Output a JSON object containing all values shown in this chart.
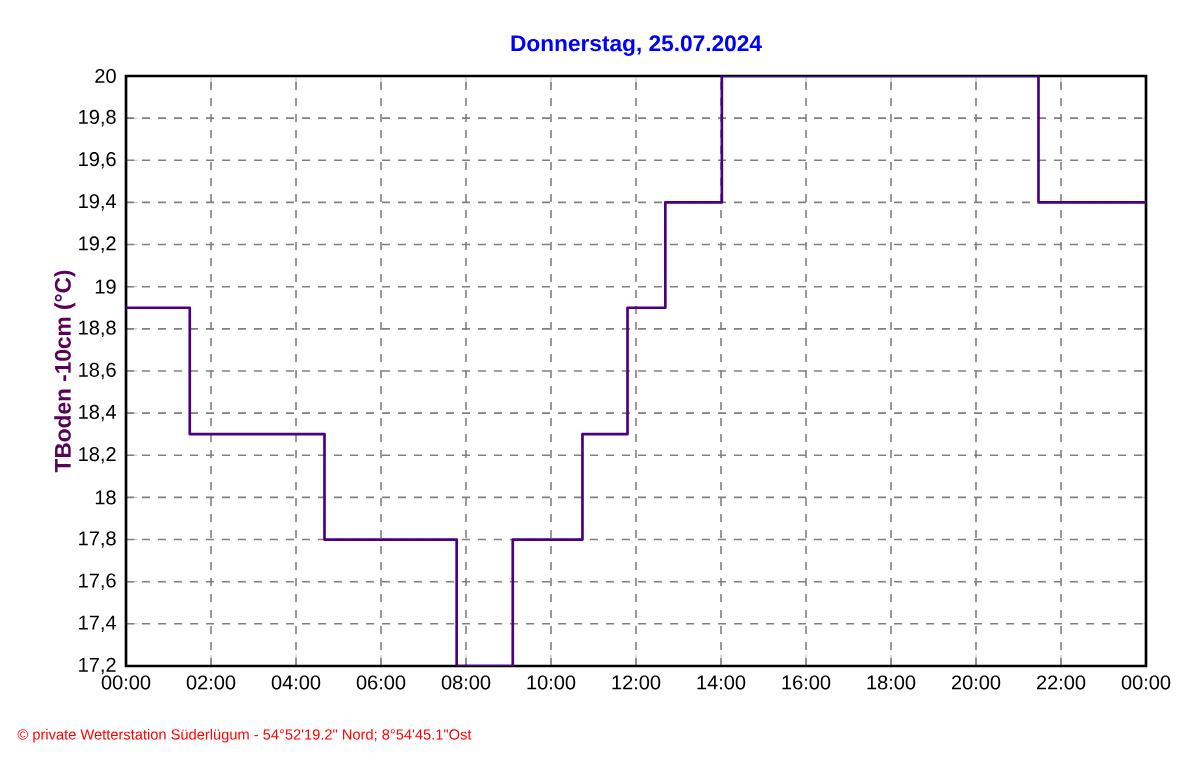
{
  "chart_data": {
    "type": "step",
    "title": "Donnerstag, 25.07.2024",
    "ylabel": "TBoden -10cm (°C)",
    "x": [
      0,
      1.5,
      4.67,
      7.78,
      9.1,
      10.74,
      11.8,
      12.69,
      14.02,
      21.47,
      24
    ],
    "series": [
      {
        "color": "#4b0082",
        "values": [
          18.9,
          18.3,
          17.8,
          17.2,
          17.8,
          18.3,
          18.9,
          19.4,
          20,
          19.4,
          19.4
        ]
      }
    ],
    "xlim": [
      0,
      24
    ],
    "xticks": [
      {
        "value": 0,
        "label": "00:00"
      },
      {
        "value": 2,
        "label": "02:00"
      },
      {
        "value": 4,
        "label": "04:00"
      },
      {
        "value": 6,
        "label": "06:00"
      },
      {
        "value": 8,
        "label": "08:00"
      },
      {
        "value": 10,
        "label": "10:00"
      },
      {
        "value": 12,
        "label": "12:00"
      },
      {
        "value": 14,
        "label": "14:00"
      },
      {
        "value": 16,
        "label": "16:00"
      },
      {
        "value": 18,
        "label": "18:00"
      },
      {
        "value": 20,
        "label": "20:00"
      },
      {
        "value": 22,
        "label": "22:00"
      },
      {
        "value": 24,
        "label": "00:00"
      }
    ],
    "ylim": [
      17.2,
      20
    ],
    "yticks": [
      {
        "value": 17.2,
        "label": "17,2"
      },
      {
        "value": 17.4,
        "label": "17,4"
      },
      {
        "value": 17.6,
        "label": "17,6"
      },
      {
        "value": 17.8,
        "label": "17,8"
      },
      {
        "value": 18,
        "label": "18"
      },
      {
        "value": 18.2,
        "label": "18,2"
      },
      {
        "value": 18.4,
        "label": "18,4"
      },
      {
        "value": 18.6,
        "label": "18,6"
      },
      {
        "value": 18.8,
        "label": "18,8"
      },
      {
        "value": 19,
        "label": "19"
      },
      {
        "value": 19.2,
        "label": "19,2"
      },
      {
        "value": 19.4,
        "label": "19,4"
      },
      {
        "value": 19.6,
        "label": "19,6"
      },
      {
        "value": 19.8,
        "label": "19,8"
      },
      {
        "value": 20,
        "label": "20"
      }
    ],
    "grid": true,
    "marker": "none",
    "line_style": "solid",
    "annotations": [
      "© private Wetterstation Süderlügum - 54°52'19.2\" Nord; 8°54'45.1\"Ost"
    ]
  }
}
